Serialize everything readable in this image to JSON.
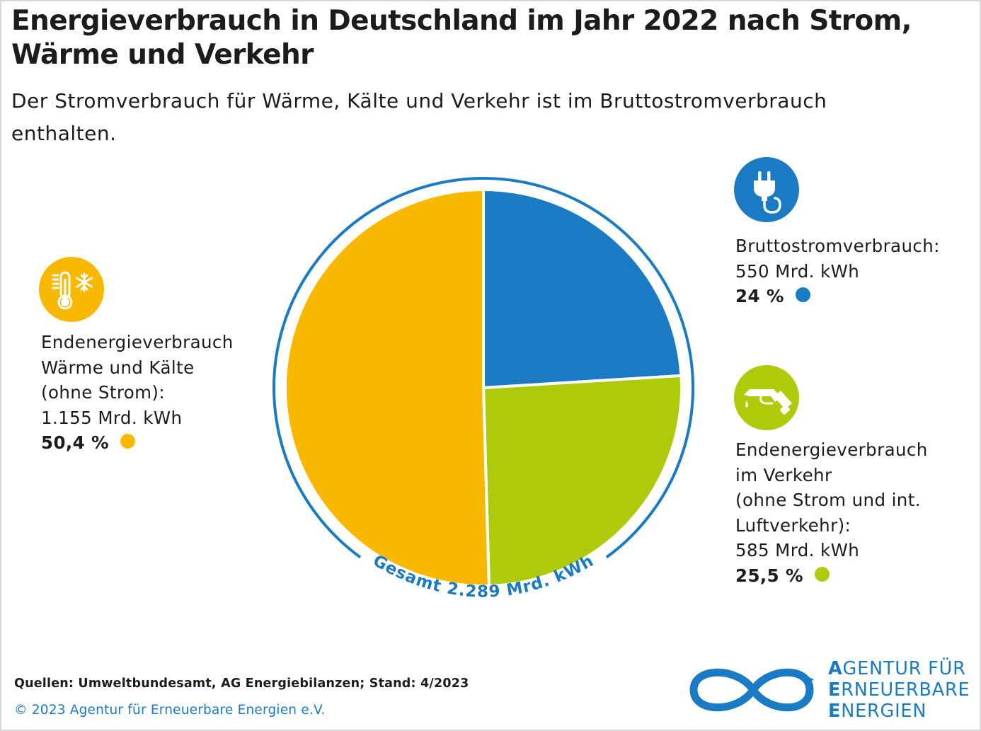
{
  "header": {
    "title": "Energieverbrauch in Deutschland im Jahr 2022 nach Strom, Wärme und Verkehr",
    "subtitle": "Der Stromverbrauch für Wärme, Kälte und Verkehr ist im Bruttostromverbrauch enthalten."
  },
  "chart_data": {
    "type": "pie",
    "total_label": "Gesamt 2.289 Mrd. kWh",
    "slices": [
      {
        "label_lines": [
          "Bruttostromverbrauch:"
        ],
        "amount": "550 Mrd. kWh",
        "percent_label": "24 %",
        "value": 24.0,
        "color": "#1b7ac4",
        "icon": "power-plug-icon"
      },
      {
        "label_lines": [
          "Endenergieverbrauch",
          "im Verkehr",
          "(ohne Strom und int.",
          "Luftverkehr):"
        ],
        "amount": "585 Mrd. kWh",
        "percent_label": "25,5 %",
        "value": 25.5,
        "color": "#afca0b",
        "icon": "fuel-nozzle-icon"
      },
      {
        "label_lines": [
          "Endenergieverbrauch",
          "Wärme und Kälte",
          "(ohne Strom):"
        ],
        "amount": "1.155 Mrd. kWh",
        "percent_label": "50,4 %",
        "value": 50.4,
        "color": "#f9b800",
        "icon": "thermometer-snowflake-icon"
      }
    ],
    "ring_color": "#1b7ac4"
  },
  "footer": {
    "sources": "Quellen: Umweltbundesamt, AG Energiebilanzen; Stand: 4/2023",
    "copyright": "© 2023 Agentur für Erneuerbare Energien e.V."
  },
  "logo": {
    "lines": [
      {
        "first": "A",
        "rest": "GENTUR FÜR"
      },
      {
        "first": "E",
        "rest": "RNEUERBARE"
      },
      {
        "first": "E",
        "rest": "NERGIEN"
      }
    ],
    "color": "#1b7ac4"
  }
}
